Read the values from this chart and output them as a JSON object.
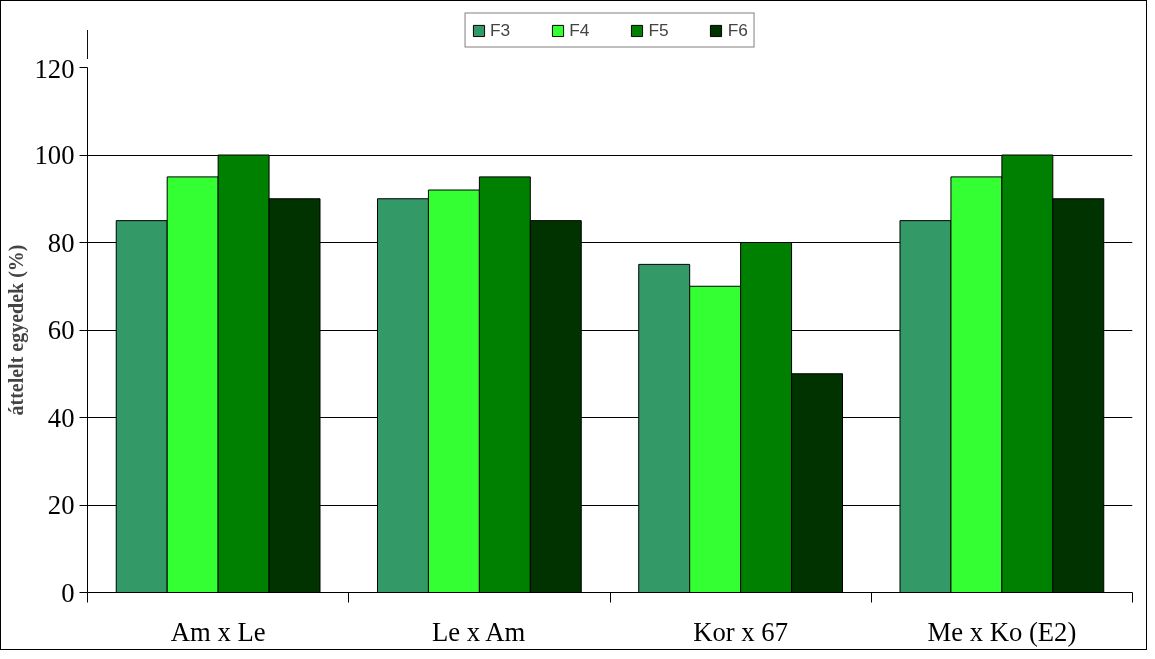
{
  "chart_data": {
    "type": "bar",
    "ylabel": "áttelelt egyedek (%)",
    "categories": [
      "Am x Le",
      "Le x Am",
      "Kor x 67",
      "Me x Ko (E2)"
    ],
    "series": [
      {
        "name": "F3",
        "color": "#339966",
        "values": [
          85,
          90,
          75,
          85
        ]
      },
      {
        "name": "F4",
        "color": "#33ff33",
        "values": [
          95,
          92,
          70,
          95
        ]
      },
      {
        "name": "F5",
        "color": "#008000",
        "values": [
          100,
          95,
          80,
          100
        ]
      },
      {
        "name": "F6",
        "color": "#003300",
        "values": [
          90,
          85,
          50,
          90
        ]
      }
    ],
    "ylim": [
      0,
      120
    ],
    "yticks": [
      0,
      20,
      40,
      60,
      80,
      100,
      120
    ],
    "grid": "y",
    "legend": "top"
  }
}
